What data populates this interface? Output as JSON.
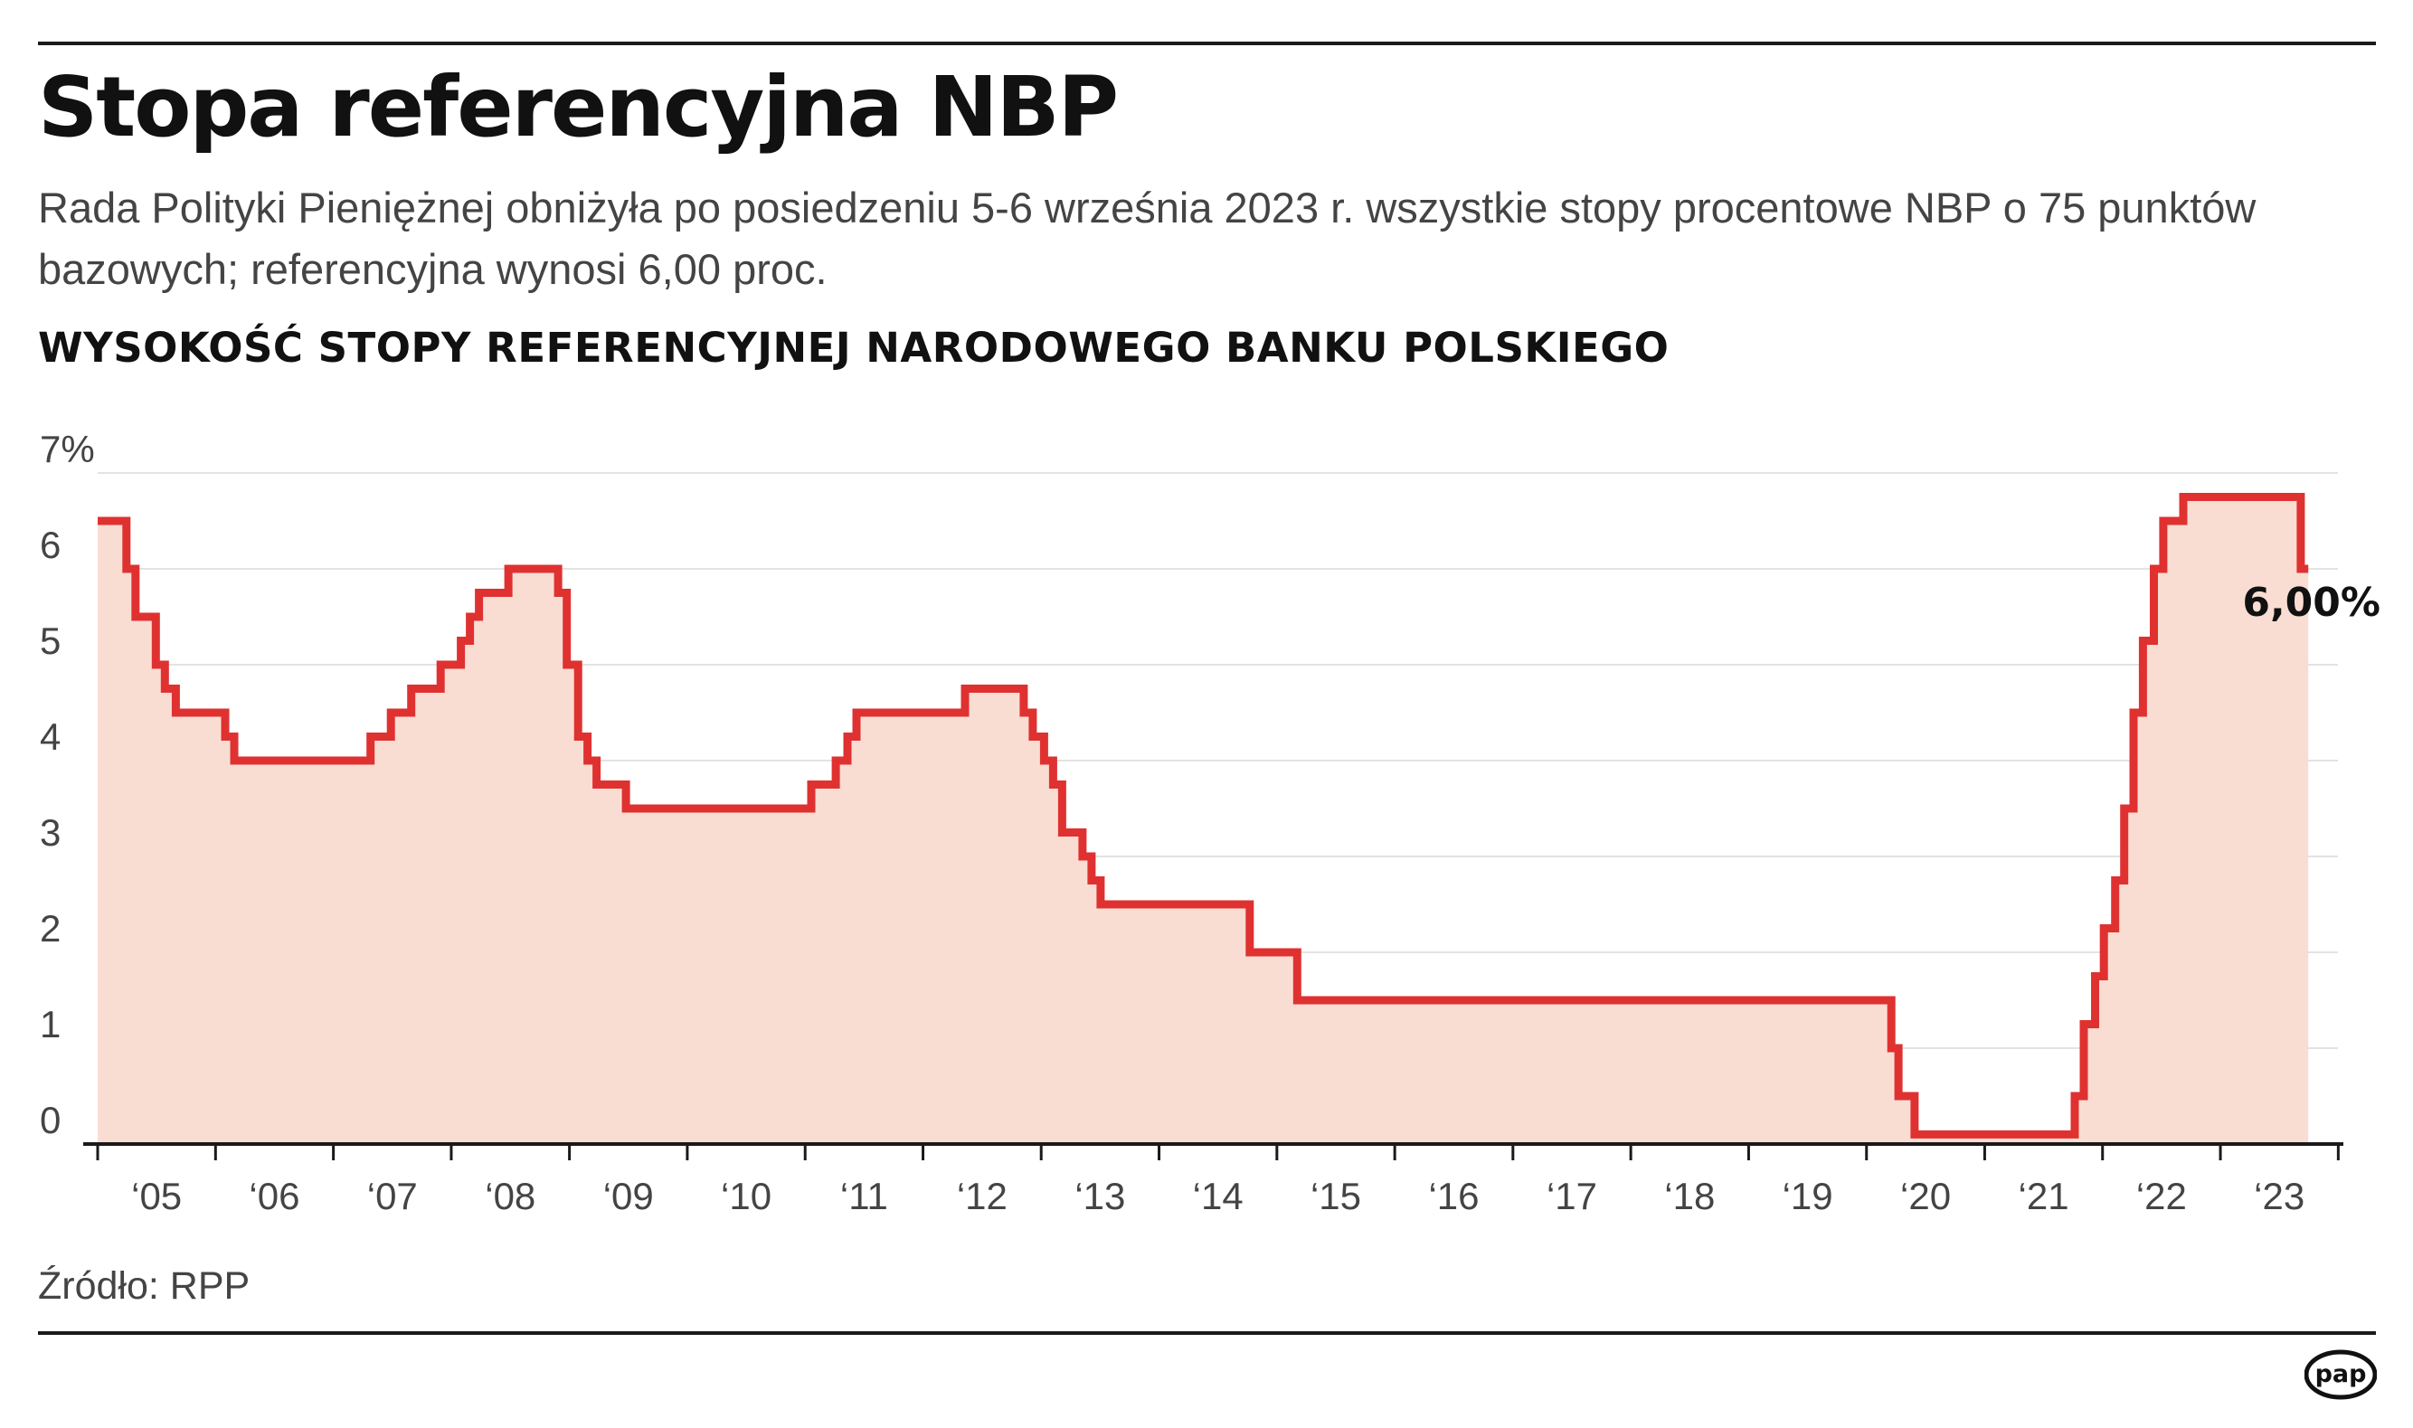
{
  "header": {
    "title": "Stopa referencyjna NBP",
    "subtitle": "Rada Polityki Pieniężnej obniżyła po posiedzeniu 5-6 września 2023 r. wszystkie stopy procentowe NBP o 75 punktów bazowych; referencyjna wynosi 6,00 proc."
  },
  "chart_heading": "WYSOKOŚĆ STOPY REFERENCYJNEJ NARODOWEGO BANKU POLSKIEGO",
  "footer": {
    "source": "Źródło: RPP",
    "logo_text": "pap"
  },
  "colors": {
    "line": "#e03131",
    "fill": "#f9ddd3",
    "grid": "#e3e3e3",
    "axis": "#1a1a1a",
    "text": "#444444",
    "dark_text": "#111111"
  },
  "chart_data": {
    "type": "line",
    "step": "after",
    "title": "WYSOKOŚĆ STOPY REFERENCYJNEJ NARODOWEGO BANKU POLSKIEGO",
    "xlabel": "",
    "ylabel": "",
    "x_range": [
      "2005-01-01",
      "2023-12-31"
    ],
    "ylim": [
      0,
      7
    ],
    "y_ticks": [
      0,
      1,
      2,
      3,
      4,
      5,
      6,
      7
    ],
    "y_tick_labels": [
      "0",
      "1",
      "2",
      "3",
      "4",
      "5",
      "6",
      "7%"
    ],
    "x_tick_labels": [
      "‘05",
      "‘06",
      "‘07",
      "‘08",
      "‘09",
      "‘10",
      "‘11",
      "‘12",
      "‘13",
      "‘14",
      "‘15",
      "‘16",
      "‘17",
      "‘18",
      "‘19",
      "‘20",
      "‘21",
      "‘22",
      "‘23"
    ],
    "grid": true,
    "fill_under": true,
    "series": [
      {
        "points": [
          [
            "2005-01-01",
            6.5
          ],
          [
            "2005-03-31",
            6.0
          ],
          [
            "2005-04-28",
            5.5
          ],
          [
            "2005-06-30",
            5.0
          ],
          [
            "2005-07-28",
            4.75
          ],
          [
            "2005-08-31",
            4.5
          ],
          [
            "2006-01-31",
            4.25
          ],
          [
            "2006-02-28",
            4.0
          ],
          [
            "2007-04-26",
            4.25
          ],
          [
            "2007-06-28",
            4.5
          ],
          [
            "2007-08-30",
            4.75
          ],
          [
            "2007-11-29",
            5.0
          ],
          [
            "2008-01-31",
            5.25
          ],
          [
            "2008-02-28",
            5.5
          ],
          [
            "2008-03-27",
            5.75
          ],
          [
            "2008-06-26",
            6.0
          ],
          [
            "2008-11-27",
            5.75
          ],
          [
            "2008-12-24",
            5.0
          ],
          [
            "2009-01-28",
            4.25
          ],
          [
            "2009-02-26",
            4.0
          ],
          [
            "2009-03-26",
            3.75
          ],
          [
            "2009-06-25",
            3.5
          ],
          [
            "2011-01-20",
            3.75
          ],
          [
            "2011-04-06",
            4.0
          ],
          [
            "2011-05-12",
            4.25
          ],
          [
            "2011-06-09",
            4.5
          ],
          [
            "2012-05-10",
            4.75
          ],
          [
            "2012-11-08",
            4.5
          ],
          [
            "2012-12-06",
            4.25
          ],
          [
            "2013-01-10",
            4.0
          ],
          [
            "2013-02-07",
            3.75
          ],
          [
            "2013-03-07",
            3.25
          ],
          [
            "2013-05-09",
            3.0
          ],
          [
            "2013-06-06",
            2.75
          ],
          [
            "2013-07-04",
            2.5
          ],
          [
            "2014-10-09",
            2.0
          ],
          [
            "2015-03-05",
            1.5
          ],
          [
            "2020-03-18",
            1.0
          ],
          [
            "2020-04-09",
            0.5
          ],
          [
            "2020-05-29",
            0.1
          ],
          [
            "2021-10-07",
            0.5
          ],
          [
            "2021-11-04",
            1.25
          ],
          [
            "2021-12-09",
            1.75
          ],
          [
            "2022-01-05",
            2.25
          ],
          [
            "2022-02-09",
            2.75
          ],
          [
            "2022-03-09",
            3.5
          ],
          [
            "2022-04-07",
            4.5
          ],
          [
            "2022-05-06",
            5.25
          ],
          [
            "2022-06-09",
            6.0
          ],
          [
            "2022-07-08",
            6.5
          ],
          [
            "2022-09-08",
            6.75
          ],
          [
            "2023-09-07",
            6.0
          ],
          [
            "2023-09-30",
            6.0
          ]
        ]
      }
    ],
    "annotations": [
      {
        "text": "6,00%",
        "x": "2023-09-30",
        "y": 6.0
      }
    ]
  }
}
